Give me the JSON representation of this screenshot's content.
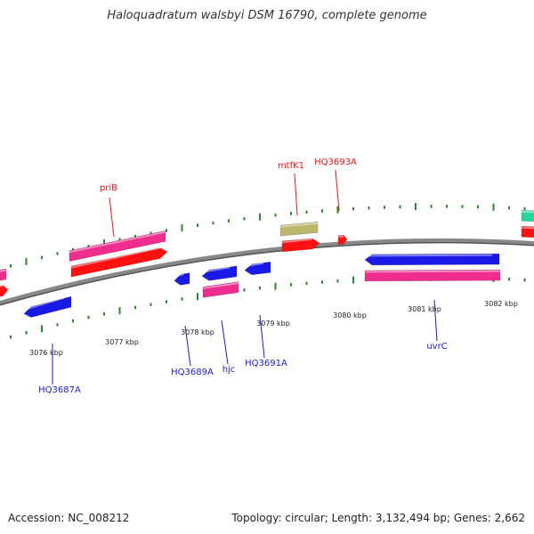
{
  "title": "Haloquadratum walsbyi DSM 16790, complete genome",
  "footer": {
    "accession": "Accession: NC_008212",
    "topology": "Topology: circular; Length: 3,132,494 bp; Genes: 2,662"
  },
  "colors": {
    "backbone": "#888888",
    "tick": "#2a8a2a",
    "forward_gene": "#ff1111",
    "reverse_gene": "#1a1ae6",
    "forward_rna": "#ee2d8f",
    "reverse_rna": "#ee2d8f",
    "other": "#bdb76b",
    "teal": "#22d99b"
  },
  "scale_labels": [
    "3076 kbp",
    "3077 kbp",
    "3078 kbp",
    "3079 kbp",
    "3080 kbp",
    "3081 kbp",
    "3082 kbp"
  ],
  "forward_labels": [
    "priB",
    "mtfK1",
    "HQ3693A"
  ],
  "reverse_labels": [
    "HQ3687A",
    "HQ3689A",
    "hjc",
    "HQ3691A",
    "uvrC"
  ]
}
